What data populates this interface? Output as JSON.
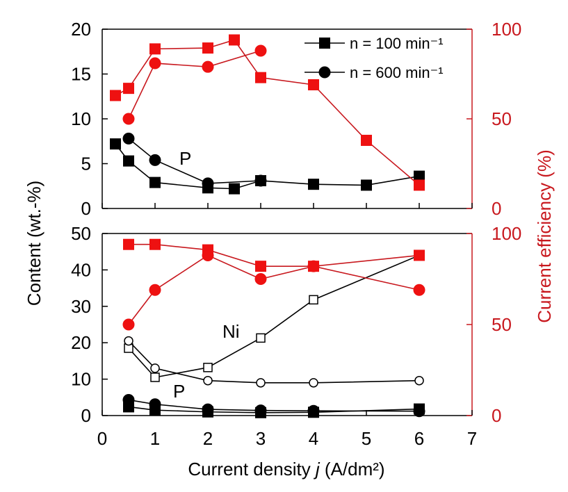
{
  "colors": {
    "black": "#000000",
    "red": "#c8181e",
    "marker_red": "#ee1111"
  },
  "chart_data": [
    {
      "type": "line",
      "panel": "top",
      "ylabel_left": "Content  (wt.-%)",
      "ylabel_right": "Current efficiency (%)",
      "xlabel": "Current density j (A/dm²)",
      "xlim": [
        0,
        7
      ],
      "ylim_left": [
        0,
        20
      ],
      "ylim_right": [
        0,
        100
      ],
      "y_ticks_left": [
        "0",
        "5",
        "10",
        "15",
        "20"
      ],
      "y_ticks_right": [
        "0",
        "50",
        "100"
      ],
      "legend": [
        {
          "label": "n = 100 min⁻¹",
          "marker": "square"
        },
        {
          "label": "n = 600 min⁻¹",
          "marker": "circle"
        }
      ],
      "annotations": [
        {
          "text": "P"
        }
      ],
      "series": [
        {
          "name": "P content, n = 100 min⁻¹",
          "axis": "left",
          "marker": "square",
          "fill": "black",
          "x": [
            0.25,
            0.5,
            1,
            2,
            2.5,
            3,
            4,
            5,
            6
          ],
          "y": [
            7.2,
            5.3,
            2.9,
            2.3,
            2.2,
            3.1,
            2.7,
            2.6,
            3.6
          ]
        },
        {
          "name": "P content, n = 600 min⁻¹",
          "axis": "left",
          "marker": "circle",
          "fill": "black",
          "x": [
            0.5,
            1,
            2,
            3
          ],
          "y": [
            7.8,
            5.4,
            2.8,
            3.1
          ]
        },
        {
          "name": "Current efficiency, n = 100 min⁻¹",
          "axis": "right",
          "marker": "square",
          "fill": "red",
          "x": [
            0.25,
            0.5,
            1,
            2,
            2.5,
            3,
            4,
            5,
            6
          ],
          "y": [
            63,
            67,
            89,
            89.5,
            94,
            73,
            69,
            38,
            13
          ]
        },
        {
          "name": "Current efficiency, n = 600 min⁻¹",
          "axis": "right",
          "marker": "circle",
          "fill": "red",
          "x": [
            0.5,
            1,
            2,
            3
          ],
          "y": [
            50,
            81,
            79,
            88
          ]
        }
      ]
    },
    {
      "type": "line",
      "panel": "bottom",
      "xlim": [
        0,
        7
      ],
      "ylim_left": [
        0,
        50
      ],
      "ylim_right": [
        0,
        100
      ],
      "x_ticks": [
        "0",
        "1",
        "2",
        "3",
        "4",
        "5",
        "6",
        "7"
      ],
      "y_ticks_left": [
        "0",
        "10",
        "20",
        "30",
        "40",
        "50"
      ],
      "y_ticks_right": [
        "0",
        "50",
        "100"
      ],
      "annotations": [
        {
          "text": "Ni"
        },
        {
          "text": "P"
        }
      ],
      "series": [
        {
          "name": "Ni content, n = 100 min⁻¹",
          "axis": "left",
          "marker": "square",
          "fill": "white",
          "x": [
            0.5,
            1,
            2,
            3,
            4,
            6
          ],
          "y": [
            18.5,
            10.5,
            13.2,
            21.3,
            31.8,
            44
          ]
        },
        {
          "name": "Ni content, n = 600 min⁻¹",
          "axis": "left",
          "marker": "circle",
          "fill": "white",
          "x": [
            0.5,
            1,
            2,
            3,
            4,
            6
          ],
          "y": [
            20.5,
            13,
            9.6,
            9,
            9,
            9.6
          ]
        },
        {
          "name": "P content, n = 100 min⁻¹",
          "axis": "left",
          "marker": "square",
          "fill": "black",
          "x": [
            0.5,
            1,
            2,
            3,
            4,
            6
          ],
          "y": [
            2.4,
            1.5,
            1.0,
            0.8,
            0.9,
            1.8
          ]
        },
        {
          "name": "P content, n = 600 min⁻¹",
          "axis": "left",
          "marker": "circle",
          "fill": "black",
          "x": [
            0.5,
            1,
            2,
            3,
            4,
            6
          ],
          "y": [
            4.3,
            3.1,
            1.7,
            1.4,
            1.3,
            1.2
          ]
        },
        {
          "name": "Current efficiency, n = 100 min⁻¹",
          "axis": "right",
          "marker": "square",
          "fill": "red",
          "x": [
            0.5,
            1,
            2,
            3,
            4,
            6
          ],
          "y": [
            94,
            94,
            91,
            82,
            82,
            88
          ]
        },
        {
          "name": "Current efficiency, n = 600 min⁻¹",
          "axis": "right",
          "marker": "circle",
          "fill": "red",
          "x": [
            0.5,
            1,
            2,
            3,
            4,
            6
          ],
          "y": [
            50,
            69,
            88,
            75,
            82,
            69
          ]
        }
      ]
    }
  ]
}
